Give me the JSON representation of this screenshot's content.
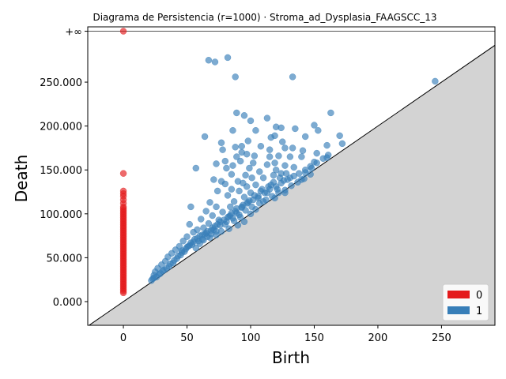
{
  "chart_data": {
    "type": "scatter",
    "title": "Diagrama de Persistencia (r=1000) · Stroma_ad_Dysplasia_FAAGSCC_13",
    "xlabel": "Birth",
    "ylabel": "Death",
    "xlim": [
      -28,
      292
    ],
    "ylim": [
      -27000,
      313000
    ],
    "xticks": [
      0,
      50,
      100,
      150,
      200,
      250
    ],
    "xtick_labels": [
      "0",
      "50",
      "100",
      "150",
      "200",
      "250"
    ],
    "yticks": [
      0,
      50000,
      100000,
      150000,
      200000,
      250000
    ],
    "ytick_labels": [
      "0.000",
      "50.000",
      "100.000",
      "150.000",
      "200.000",
      "250.000"
    ],
    "infinity_level": 308000,
    "infinity_label": "+∞",
    "diagonal": true,
    "grid": false,
    "legend_position": "bottom-right",
    "series": [
      {
        "name": "0",
        "color": "#e41a1c",
        "points": [
          [
            0,
            "inf"
          ],
          [
            0,
            146000
          ],
          [
            0,
            126000
          ],
          [
            0,
            123000
          ],
          [
            0,
            120000
          ],
          [
            0,
            116000
          ],
          [
            0,
            112000
          ],
          [
            0,
            108000
          ],
          [
            0,
            106000
          ],
          [
            0,
            104000
          ],
          [
            0,
            102000
          ],
          [
            0,
            100000
          ],
          [
            0,
            98000
          ],
          [
            0,
            96000
          ],
          [
            0,
            94000
          ],
          [
            0,
            92000
          ],
          [
            0,
            90000
          ],
          [
            0,
            88000
          ],
          [
            0,
            86000
          ],
          [
            0,
            84000
          ],
          [
            0,
            82000
          ],
          [
            0,
            80000
          ],
          [
            0,
            78000
          ],
          [
            0,
            76000
          ],
          [
            0,
            74000
          ],
          [
            0,
            72000
          ],
          [
            0,
            70000
          ],
          [
            0,
            68000
          ],
          [
            0,
            66000
          ],
          [
            0,
            64000
          ],
          [
            0,
            62000
          ],
          [
            0,
            60000
          ],
          [
            0,
            58000
          ],
          [
            0,
            56000
          ],
          [
            0,
            54000
          ],
          [
            0,
            52000
          ],
          [
            0,
            50000
          ],
          [
            0,
            48000
          ],
          [
            0,
            46000
          ],
          [
            0,
            44000
          ],
          [
            0,
            42000
          ],
          [
            0,
            40000
          ],
          [
            0,
            38000
          ],
          [
            0,
            36000
          ],
          [
            0,
            34000
          ],
          [
            0,
            32000
          ],
          [
            0,
            30000
          ],
          [
            0,
            28000
          ],
          [
            0,
            26000
          ],
          [
            0,
            24000
          ],
          [
            0,
            22000
          ],
          [
            0,
            20000
          ],
          [
            0,
            18000
          ],
          [
            0,
            16000
          ],
          [
            0,
            14000
          ],
          [
            0,
            12000
          ],
          [
            0,
            10000
          ]
        ]
      },
      {
        "name": "1",
        "color": "#377eb8",
        "points": [
          [
            82,
            278000
          ],
          [
            67,
            275000
          ],
          [
            72,
            273000
          ],
          [
            88,
            256000
          ],
          [
            133,
            256000
          ],
          [
            245,
            251000
          ],
          [
            89,
            215000
          ],
          [
            163,
            215000
          ],
          [
            95,
            212000
          ],
          [
            113,
            209000
          ],
          [
            100,
            206000
          ],
          [
            120,
            199000
          ],
          [
            150,
            201000
          ],
          [
            124,
            198000
          ],
          [
            135,
            197000
          ],
          [
            86,
            195000
          ],
          [
            104,
            195000
          ],
          [
            153,
            195000
          ],
          [
            143,
            188000
          ],
          [
            64,
            188000
          ],
          [
            119,
            189000
          ],
          [
            116,
            187000
          ],
          [
            98,
            183000
          ],
          [
            170,
            189000
          ],
          [
            77,
            181000
          ],
          [
            125,
            182000
          ],
          [
            88,
            176000
          ],
          [
            93,
            177000
          ],
          [
            108,
            177000
          ],
          [
            133,
            175000
          ],
          [
            160,
            178000
          ],
          [
            172,
            180000
          ],
          [
            127,
            175000
          ],
          [
            78,
            173000
          ],
          [
            115,
            173000
          ],
          [
            141,
            172000
          ],
          [
            93,
            170000
          ],
          [
            97,
            168000
          ],
          [
            89,
            165000
          ],
          [
            103,
            166000
          ],
          [
            115,
            165000
          ],
          [
            152,
            169000
          ],
          [
            122,
            166000
          ],
          [
            131,
            165000
          ],
          [
            140,
            165000
          ],
          [
            160,
            164000
          ],
          [
            80,
            160000
          ],
          [
            92,
            160000
          ],
          [
            102,
            158000
          ],
          [
            119,
            158000
          ],
          [
            150,
            159000
          ],
          [
            73,
            157000
          ],
          [
            86,
            155000
          ],
          [
            113,
            156000
          ],
          [
            127,
            155000
          ],
          [
            134,
            153000
          ],
          [
            57,
            152000
          ],
          [
            81,
            152000
          ],
          [
            99,
            152000
          ],
          [
            148,
            152000
          ],
          [
            120,
            150000
          ],
          [
            107,
            148000
          ],
          [
            124,
            146000
          ],
          [
            143,
            147000
          ],
          [
            85,
            145000
          ],
          [
            96,
            144000
          ],
          [
            118,
            144000
          ],
          [
            101,
            141000
          ],
          [
            110,
            141000
          ],
          [
            131,
            141000
          ],
          [
            71,
            139000
          ],
          [
            77,
            137000
          ],
          [
            90,
            137000
          ],
          [
            126,
            138000
          ],
          [
            140,
            139000
          ],
          [
            80,
            134000
          ],
          [
            94,
            135000
          ],
          [
            104,
            133000
          ],
          [
            116,
            133000
          ],
          [
            97,
            131000
          ],
          [
            85,
            128000
          ],
          [
            109,
            128000
          ],
          [
            121,
            128000
          ],
          [
            74,
            126000
          ],
          [
            91,
            126000
          ],
          [
            100,
            124000
          ],
          [
            113,
            124000
          ],
          [
            127,
            124000
          ],
          [
            82,
            121000
          ],
          [
            95,
            119000
          ],
          [
            106,
            118000
          ],
          [
            119,
            118000
          ],
          [
            68,
            113000
          ],
          [
            87,
            114000
          ],
          [
            98,
            113000
          ],
          [
            110,
            114000
          ],
          [
            53,
            108000
          ],
          [
            73,
            108000
          ],
          [
            84,
            108000
          ],
          [
            93,
            107000
          ],
          [
            104,
            105000
          ],
          [
            65,
            103000
          ],
          [
            78,
            102000
          ],
          [
            89,
            101000
          ],
          [
            100,
            100000
          ],
          [
            70,
            98000
          ],
          [
            83,
            97000
          ],
          [
            92,
            96000
          ],
          [
            61,
            94000
          ],
          [
            75,
            93000
          ],
          [
            87,
            92000
          ],
          [
            95,
            91000
          ],
          [
            67,
            89000
          ],
          [
            80,
            88000
          ],
          [
            52,
            88000
          ],
          [
            90,
            87000
          ],
          [
            72,
            86000
          ],
          [
            63,
            84000
          ],
          [
            83,
            83000
          ],
          [
            58,
            82000
          ],
          [
            69,
            81000
          ],
          [
            77,
            80000
          ],
          [
            55,
            79000
          ],
          [
            65,
            78000
          ],
          [
            73,
            76000
          ],
          [
            60,
            75000
          ],
          [
            50,
            74000
          ],
          [
            68,
            73000
          ],
          [
            56,
            71000
          ],
          [
            63,
            70000
          ],
          [
            47,
            69000
          ],
          [
            53,
            67000
          ],
          [
            60,
            66000
          ],
          [
            44,
            63000
          ],
          [
            50,
            62000
          ],
          [
            57,
            61000
          ],
          [
            41,
            59000
          ],
          [
            48,
            57000
          ],
          [
            38,
            55000
          ],
          [
            45,
            53000
          ],
          [
            35,
            51000
          ],
          [
            42,
            49000
          ],
          [
            33,
            46000
          ],
          [
            39,
            44000
          ],
          [
            30,
            42000
          ],
          [
            36,
            40000
          ],
          [
            27,
            38000
          ],
          [
            32,
            36000
          ],
          [
            25,
            34000
          ],
          [
            29,
            32000
          ],
          [
            24,
            30000
          ],
          [
            26,
            28000
          ],
          [
            23,
            26000
          ],
          [
            22,
            24000
          ],
          [
            24,
            27000
          ],
          [
            28,
            31000
          ],
          [
            31,
            35000
          ],
          [
            34,
            38000
          ],
          [
            37,
            43000
          ],
          [
            40,
            47000
          ],
          [
            43,
            52000
          ],
          [
            46,
            56000
          ],
          [
            49,
            60000
          ],
          [
            52,
            64000
          ],
          [
            55,
            68000
          ],
          [
            58,
            72000
          ],
          [
            62,
            76000
          ],
          [
            66,
            80000
          ],
          [
            70,
            84000
          ],
          [
            74,
            88000
          ],
          [
            79,
            93000
          ],
          [
            84,
            98000
          ],
          [
            88,
            103000
          ],
          [
            93,
            108000
          ],
          [
            97,
            112000
          ],
          [
            102,
            116000
          ],
          [
            106,
            120000
          ],
          [
            111,
            124000
          ],
          [
            115,
            128000
          ],
          [
            120,
            131000
          ],
          [
            124,
            135000
          ],
          [
            129,
            139000
          ],
          [
            134,
            143000
          ],
          [
            138,
            146000
          ],
          [
            143,
            150000
          ],
          [
            147,
            154000
          ],
          [
            152,
            158000
          ],
          [
            157,
            163000
          ],
          [
            161,
            167000
          ],
          [
            64,
            77000
          ],
          [
            71,
            82000
          ],
          [
            76,
            87000
          ],
          [
            81,
            91000
          ],
          [
            86,
            95000
          ],
          [
            91,
            99000
          ],
          [
            96,
            104000
          ],
          [
            101,
            108000
          ],
          [
            107,
            112000
          ],
          [
            112,
            116000
          ],
          [
            117,
            120000
          ],
          [
            122,
            124000
          ],
          [
            127,
            127000
          ],
          [
            132,
            132000
          ],
          [
            137,
            136000
          ],
          [
            142,
            140000
          ],
          [
            147,
            145000
          ],
          [
            62,
            71000
          ],
          [
            66,
            74000
          ],
          [
            69,
            77000
          ],
          [
            73,
            80000
          ],
          [
            59,
            69000
          ],
          [
            54,
            65000
          ],
          [
            51,
            63000
          ],
          [
            46,
            58000
          ],
          [
            76,
            91000
          ],
          [
            82,
            96000
          ],
          [
            85,
            101000
          ],
          [
            89,
            106000
          ],
          [
            94,
            110000
          ],
          [
            99,
            115000
          ],
          [
            103,
            121000
          ],
          [
            108,
            126000
          ],
          [
            114,
            131000
          ],
          [
            118,
            136000
          ],
          [
            123,
            141000
          ],
          [
            128,
            146000
          ]
        ]
      }
    ]
  }
}
